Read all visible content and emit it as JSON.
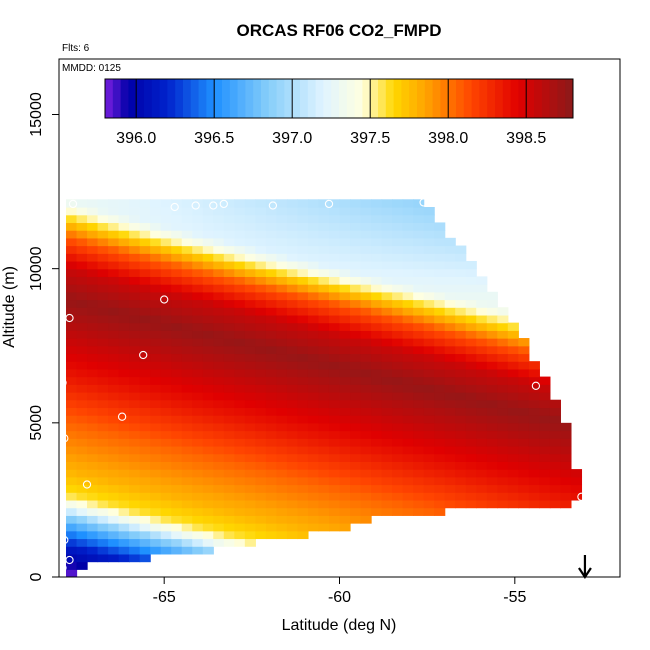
{
  "chart_data": {
    "type": "heatmap",
    "title": "ORCAS RF06 CO2_FMPD",
    "subtitle_flights": "Flts: 6",
    "subtitle_date": "MMDD: 0125",
    "xlabel": "Latitude (deg N)",
    "ylabel": "Altitude (m)",
    "xlim": [
      -68.0,
      -52.0
    ],
    "ylim": [
      0,
      16800
    ],
    "x_ticks": [
      -65,
      -60,
      -55
    ],
    "x_tick_labels": [
      "-65",
      "-60",
      "-55"
    ],
    "y_ticks": [
      0,
      5000,
      10000,
      15000
    ],
    "y_tick_labels": [
      "0",
      "5000",
      "10000",
      "15000"
    ],
    "colorbar": {
      "range": [
        395.8,
        398.8
      ],
      "ticks": [
        396.0,
        396.5,
        397.0,
        397.5,
        398.0,
        398.5
      ],
      "tick_labels": [
        "396.0",
        "396.5",
        "397.0",
        "397.5",
        "398.0",
        "398.5"
      ],
      "colors": [
        "#7a1fe0",
        "#0000a8",
        "#0022cc",
        "#1e90ff",
        "#87cefa",
        "#e0f4ff",
        "#ffffe0",
        "#ffd700",
        "#ffa500",
        "#ff4500",
        "#e00000",
        "#8b1a1a"
      ],
      "color_positions": [
        395.8,
        395.95,
        396.2,
        396.5,
        396.85,
        397.2,
        397.45,
        397.65,
        397.85,
        398.15,
        398.45,
        398.8
      ]
    },
    "field": {
      "lat_min": -67.8,
      "lat_max": -53.1,
      "alt_min": 0,
      "alt_max": 12200,
      "cell_lat": 0.3,
      "cell_alt": 250,
      "top_edge": [
        [
          -67.8,
          12200
        ],
        [
          -57.5,
          12200
        ],
        [
          -57.0,
          11300
        ],
        [
          -56.0,
          9800
        ],
        [
          -54.5,
          7200
        ],
        [
          -54.0,
          6200
        ],
        [
          -53.5,
          4800
        ],
        [
          -53.1,
          2600
        ]
      ],
      "bottom_edge": [
        [
          -53.1,
          2400
        ],
        [
          -58.6,
          2000
        ],
        [
          -60.2,
          1500
        ],
        [
          -62.0,
          1200
        ],
        [
          -63.5,
          900
        ],
        [
          -65.6,
          600
        ],
        [
          -67.0,
          400
        ],
        [
          -67.8,
          0
        ]
      ],
      "profile_points": [
        {
          "alt": 0,
          "v": 395.8
        },
        {
          "alt": 500,
          "v": 395.95
        },
        {
          "alt": 1000,
          "v": 396.15
        },
        {
          "alt": 1500,
          "v": 396.5
        },
        {
          "alt": 2000,
          "v": 396.9
        },
        {
          "alt": 2300,
          "v": 397.3
        },
        {
          "alt": 2700,
          "v": 397.6
        },
        {
          "alt": 3500,
          "v": 397.8
        },
        {
          "alt": 5000,
          "v": 398.05
        },
        {
          "alt": 6500,
          "v": 398.35
        },
        {
          "alt": 8000,
          "v": 398.6
        },
        {
          "alt": 9000,
          "v": 398.75
        },
        {
          "alt": 10000,
          "v": 398.55
        },
        {
          "alt": 11000,
          "v": 398.1
        },
        {
          "alt": 11700,
          "v": 397.6
        },
        {
          "alt": 12200,
          "v": 397.3
        }
      ],
      "north_tilt_m_per_deg": 280,
      "north_top_cooling": 0.18
    },
    "samples": [
      {
        "lat": -67.9,
        "alt": 300
      },
      {
        "lat": -67.7,
        "alt": 550
      },
      {
        "lat": -67.85,
        "alt": 1200
      },
      {
        "lat": -67.2,
        "alt": 3000
      },
      {
        "lat": -67.85,
        "alt": 4500
      },
      {
        "lat": -66.2,
        "alt": 5200
      },
      {
        "lat": -67.9,
        "alt": 6300
      },
      {
        "lat": -65.6,
        "alt": 7200
      },
      {
        "lat": -67.7,
        "alt": 8400
      },
      {
        "lat": -65.0,
        "alt": 9000
      },
      {
        "lat": -67.95,
        "alt": 10500
      },
      {
        "lat": -67.6,
        "alt": 12100
      },
      {
        "lat": -64.7,
        "alt": 12000
      },
      {
        "lat": -64.1,
        "alt": 12050
      },
      {
        "lat": -63.6,
        "alt": 12050
      },
      {
        "lat": -63.3,
        "alt": 12100
      },
      {
        "lat": -61.9,
        "alt": 12050
      },
      {
        "lat": -60.3,
        "alt": 12100
      },
      {
        "lat": -57.6,
        "alt": 12150
      },
      {
        "lat": -54.4,
        "alt": 6200
      },
      {
        "lat": -53.1,
        "alt": 2600
      }
    ],
    "arrow_marker_lat": -53.0
  }
}
